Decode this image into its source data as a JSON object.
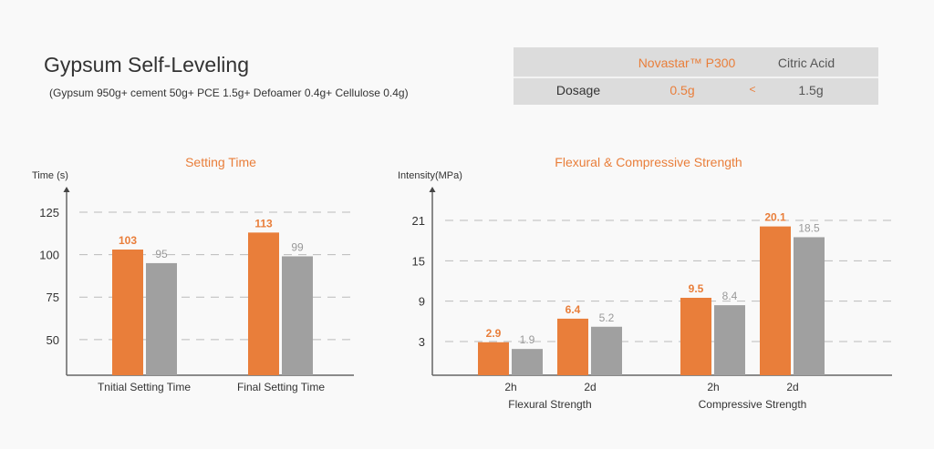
{
  "header": {
    "title": "Gypsum Self-Leveling",
    "subtitle": "(Gypsum 950g+ cement 50g+ PCE 1.5g+ Defoamer 0.4g+ Cellulose 0.4g)"
  },
  "table": {
    "col1": "Novastar™ P300",
    "col2": "Citric Acid",
    "row_label": "Dosage",
    "val1": "0.5g",
    "compare": "<",
    "val2": "1.5g"
  },
  "colors": {
    "accent": "#e97e3a",
    "gray": "#a0a0a0",
    "text": "#333333"
  },
  "chart_data": [
    {
      "type": "bar",
      "title": "Setting Time",
      "ylabel": "Time (s)",
      "xlabel": "",
      "ylim": [
        29,
        140
      ],
      "yticks": [
        50,
        75,
        100,
        125
      ],
      "grid": "dashed-horizontal",
      "categories": [
        "Tnitial Setting Time",
        "Final Setting Time"
      ],
      "series": [
        {
          "values": [
            103,
            113
          ],
          "color": "#e97e3a"
        },
        {
          "values": [
            95,
            99
          ],
          "color": "#a0a0a0"
        }
      ]
    },
    {
      "type": "bar",
      "title": "Flexural & Compressive Strength",
      "ylabel": "Intensity(MPa)",
      "xlabel": "",
      "ylim": [
        -2,
        26
      ],
      "yticks": [
        3,
        9,
        15,
        21
      ],
      "grid": "dashed-horizontal",
      "categories": [
        "2h",
        "2d",
        "2h",
        "2d"
      ],
      "groups": [
        "Flexural Strength",
        "Compressive Strength"
      ],
      "series": [
        {
          "values": [
            2.9,
            6.4,
            9.5,
            20.1
          ],
          "color": "#e97e3a"
        },
        {
          "values": [
            1.9,
            5.2,
            8.4,
            18.5
          ],
          "color": "#a0a0a0"
        }
      ]
    }
  ]
}
